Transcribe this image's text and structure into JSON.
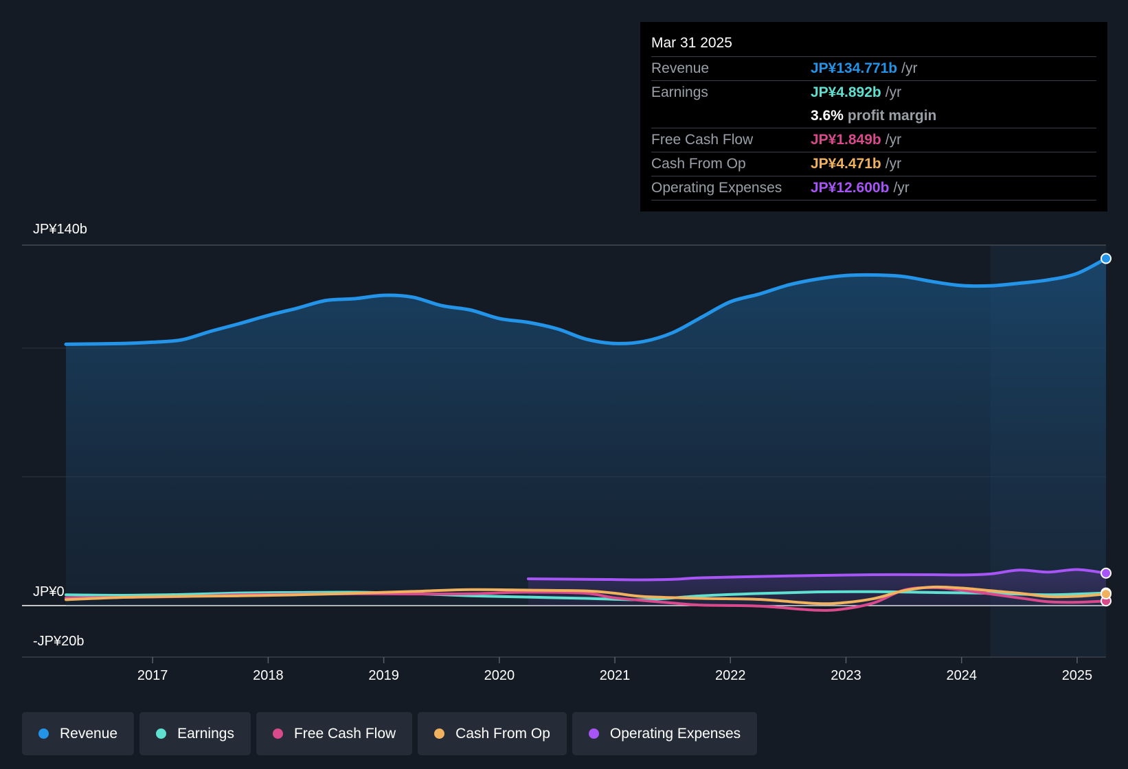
{
  "chart_data": {
    "type": "line",
    "x_unit": "year",
    "xlim": [
      2016.25,
      2025.25
    ],
    "ylim": [
      -20,
      140
    ],
    "y_labels": [
      {
        "value": 140,
        "label": "JP¥140b"
      },
      {
        "value": 0,
        "label": "JP¥0"
      },
      {
        "value": -20,
        "label": "-JP¥20b"
      }
    ],
    "gridlines": [
      140,
      100,
      50,
      0
    ],
    "x_ticks": [
      {
        "value": 2017,
        "label": "2017"
      },
      {
        "value": 2018,
        "label": "2018"
      },
      {
        "value": 2019,
        "label": "2019"
      },
      {
        "value": 2020,
        "label": "2020"
      },
      {
        "value": 2021,
        "label": "2021"
      },
      {
        "value": 2022,
        "label": "2022"
      },
      {
        "value": 2023,
        "label": "2023"
      },
      {
        "value": 2024,
        "label": "2024"
      },
      {
        "value": 2025,
        "label": "2025"
      }
    ],
    "highlight_from": 2024.25,
    "series": [
      {
        "name": "Revenue",
        "color": "#2394e8",
        "fill": true,
        "points": [
          [
            2016.25,
            101.5
          ],
          [
            2016.75,
            101.8
          ],
          [
            2017.0,
            102.3
          ],
          [
            2017.25,
            103.2
          ],
          [
            2017.5,
            106.5
          ],
          [
            2017.75,
            109.5
          ],
          [
            2018.0,
            112.7
          ],
          [
            2018.25,
            115.5
          ],
          [
            2018.5,
            118.5
          ],
          [
            2018.75,
            119.2
          ],
          [
            2019.0,
            120.5
          ],
          [
            2019.25,
            119.8
          ],
          [
            2019.5,
            116.5
          ],
          [
            2019.75,
            114.8
          ],
          [
            2020.0,
            111.5
          ],
          [
            2020.25,
            110.0
          ],
          [
            2020.5,
            107.5
          ],
          [
            2020.75,
            103.5
          ],
          [
            2021.0,
            101.8
          ],
          [
            2021.25,
            102.6
          ],
          [
            2021.5,
            106.0
          ],
          [
            2021.75,
            112.0
          ],
          [
            2022.0,
            118.0
          ],
          [
            2022.25,
            121.0
          ],
          [
            2022.5,
            124.5
          ],
          [
            2022.75,
            126.8
          ],
          [
            2023.0,
            128.2
          ],
          [
            2023.25,
            128.4
          ],
          [
            2023.5,
            127.8
          ],
          [
            2023.75,
            125.8
          ],
          [
            2024.0,
            124.3
          ],
          [
            2024.25,
            124.2
          ],
          [
            2024.5,
            125.2
          ],
          [
            2024.75,
            126.5
          ],
          [
            2025.0,
            129.0
          ],
          [
            2025.25,
            134.8
          ]
        ]
      },
      {
        "name": "Earnings",
        "color": "#5fe0d0",
        "fill": false,
        "points": [
          [
            2016.25,
            4.2
          ],
          [
            2016.75,
            4.0
          ],
          [
            2017.25,
            4.3
          ],
          [
            2017.75,
            4.9
          ],
          [
            2018.25,
            5.1
          ],
          [
            2018.75,
            5.2
          ],
          [
            2019.25,
            4.7
          ],
          [
            2019.75,
            3.8
          ],
          [
            2020.25,
            3.3
          ],
          [
            2020.75,
            2.8
          ],
          [
            2021.25,
            2.3
          ],
          [
            2021.75,
            3.8
          ],
          [
            2022.25,
            4.7
          ],
          [
            2022.75,
            5.3
          ],
          [
            2023.25,
            5.4
          ],
          [
            2023.75,
            5.1
          ],
          [
            2024.25,
            4.8
          ],
          [
            2024.75,
            4.2
          ],
          [
            2025.25,
            4.9
          ]
        ]
      },
      {
        "name": "Free Cash Flow",
        "color": "#d94a8c",
        "fill": false,
        "points": [
          [
            2016.25,
            3.0
          ],
          [
            2016.75,
            3.2
          ],
          [
            2017.25,
            3.5
          ],
          [
            2017.75,
            4.2
          ],
          [
            2018.25,
            4.4
          ],
          [
            2018.75,
            4.6
          ],
          [
            2019.25,
            4.5
          ],
          [
            2019.75,
            4.6
          ],
          [
            2020.25,
            5.2
          ],
          [
            2020.75,
            4.8
          ],
          [
            2021.0,
            3.0
          ],
          [
            2021.5,
            1.0
          ],
          [
            2021.75,
            0.2
          ],
          [
            2022.25,
            -0.2
          ],
          [
            2022.75,
            -1.8
          ],
          [
            2023.0,
            -1.2
          ],
          [
            2023.25,
            1.2
          ],
          [
            2023.5,
            6.0
          ],
          [
            2023.75,
            7.0
          ],
          [
            2024.0,
            6.0
          ],
          [
            2024.5,
            3.0
          ],
          [
            2024.75,
            1.5
          ],
          [
            2025.0,
            1.3
          ],
          [
            2025.25,
            1.8
          ]
        ]
      },
      {
        "name": "Cash From Op",
        "color": "#f0b25e",
        "fill": false,
        "points": [
          [
            2016.25,
            2.3
          ],
          [
            2016.75,
            3.2
          ],
          [
            2017.25,
            3.6
          ],
          [
            2017.75,
            3.8
          ],
          [
            2018.25,
            4.2
          ],
          [
            2018.75,
            4.8
          ],
          [
            2019.25,
            5.5
          ],
          [
            2019.75,
            6.2
          ],
          [
            2020.25,
            6.0
          ],
          [
            2020.75,
            5.7
          ],
          [
            2021.0,
            4.8
          ],
          [
            2021.25,
            3.5
          ],
          [
            2021.75,
            2.8
          ],
          [
            2022.25,
            2.4
          ],
          [
            2022.75,
            0.8
          ],
          [
            2023.0,
            1.2
          ],
          [
            2023.25,
            2.8
          ],
          [
            2023.5,
            5.8
          ],
          [
            2023.75,
            7.2
          ],
          [
            2024.0,
            6.8
          ],
          [
            2024.25,
            5.8
          ],
          [
            2024.5,
            4.8
          ],
          [
            2024.75,
            3.5
          ],
          [
            2025.0,
            3.6
          ],
          [
            2025.25,
            4.5
          ]
        ]
      },
      {
        "name": "Operating Expenses",
        "color": "#a855f7",
        "fill": true,
        "points": [
          [
            2020.25,
            10.4
          ],
          [
            2020.75,
            10.2
          ],
          [
            2021.0,
            10.1
          ],
          [
            2021.25,
            10.0
          ],
          [
            2021.5,
            10.2
          ],
          [
            2021.75,
            10.8
          ],
          [
            2022.25,
            11.3
          ],
          [
            2022.75,
            11.7
          ],
          [
            2023.25,
            12.0
          ],
          [
            2023.75,
            12.0
          ],
          [
            2024.0,
            11.9
          ],
          [
            2024.25,
            12.3
          ],
          [
            2024.5,
            13.8
          ],
          [
            2024.75,
            13.0
          ],
          [
            2025.0,
            14.0
          ],
          [
            2025.25,
            12.6
          ]
        ]
      }
    ]
  },
  "tooltip": {
    "date": "Mar 31 2025",
    "rows": [
      {
        "label": "Revenue",
        "value": "JP¥134.771b",
        "unit": "/yr",
        "color": "#2394e8"
      },
      {
        "label": "Earnings",
        "value": "JP¥4.892b",
        "unit": "/yr",
        "color": "#5fe0d0"
      },
      {
        "label": "",
        "value": "3.6%",
        "unit": "profit margin",
        "color": "#ffffff"
      },
      {
        "label": "Free Cash Flow",
        "value": "JP¥1.849b",
        "unit": "/yr",
        "color": "#d94a8c"
      },
      {
        "label": "Cash From Op",
        "value": "JP¥4.471b",
        "unit": "/yr",
        "color": "#f0b25e"
      },
      {
        "label": "Operating Expenses",
        "value": "JP¥12.600b",
        "unit": "/yr",
        "color": "#a855f7"
      }
    ]
  },
  "legend": [
    {
      "label": "Revenue",
      "color": "#2394e8"
    },
    {
      "label": "Earnings",
      "color": "#5fe0d0"
    },
    {
      "label": "Free Cash Flow",
      "color": "#d94a8c"
    },
    {
      "label": "Cash From Op",
      "color": "#f0b25e"
    },
    {
      "label": "Operating Expenses",
      "color": "#a855f7"
    }
  ]
}
